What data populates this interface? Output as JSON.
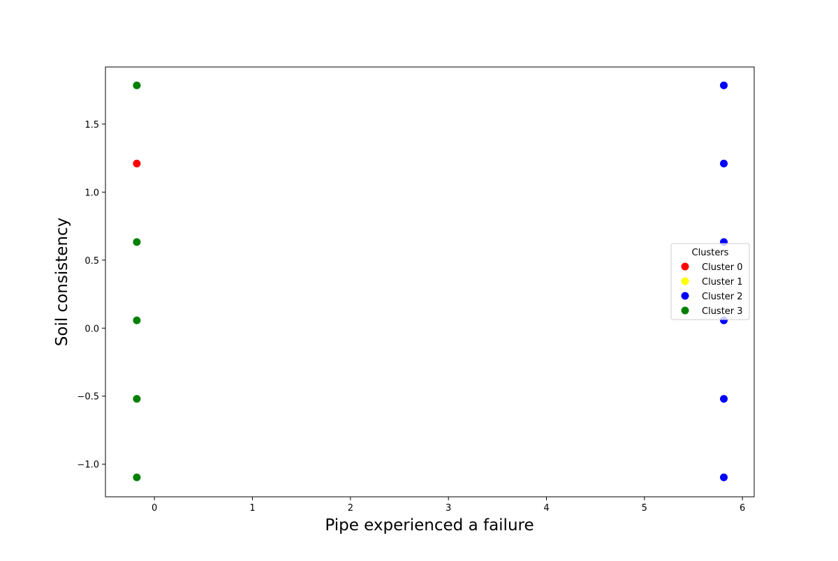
{
  "chart_data": {
    "type": "scatter",
    "title": "",
    "xlabel": "Pipe experienced a failure",
    "ylabel": "Soil consistency",
    "xlim": [
      -0.5,
      6.12
    ],
    "ylim": [
      -1.24,
      1.92
    ],
    "xticks": [
      0,
      1,
      2,
      3,
      4,
      5,
      6
    ],
    "yticks": [
      -1.0,
      -0.5,
      0.0,
      0.5,
      1.0,
      1.5
    ],
    "ytick_labels": [
      "−1.0",
      "−0.5",
      "0.0",
      "0.5",
      "1.0",
      "1.5"
    ],
    "grid": false,
    "legend": {
      "title": "Clusters",
      "placement": "center-right",
      "entries": [
        {
          "name": "Cluster 0",
          "color": "#ff0000"
        },
        {
          "name": "Cluster 1",
          "color": "#ffff00"
        },
        {
          "name": "Cluster 2",
          "color": "#0000ff"
        },
        {
          "name": "Cluster 3",
          "color": "#008000"
        }
      ]
    },
    "series": [
      {
        "name": "Cluster 0",
        "color": "#ff0000",
        "points": [
          {
            "x": -0.18,
            "y": 1.21
          }
        ]
      },
      {
        "name": "Cluster 1",
        "color": "#ffff00",
        "points": []
      },
      {
        "name": "Cluster 2",
        "color": "#0000ff",
        "points": [
          {
            "x": 5.81,
            "y": 1.785
          },
          {
            "x": 5.81,
            "y": 1.21
          },
          {
            "x": 5.81,
            "y": 0.633
          },
          {
            "x": 5.81,
            "y": 0.057
          },
          {
            "x": 5.81,
            "y": -0.52
          },
          {
            "x": 5.81,
            "y": -1.097
          }
        ]
      },
      {
        "name": "Cluster 3",
        "color": "#008000",
        "points": [
          {
            "x": -0.18,
            "y": 1.785
          },
          {
            "x": -0.18,
            "y": 0.633
          },
          {
            "x": -0.18,
            "y": 0.057
          },
          {
            "x": -0.18,
            "y": -0.52
          },
          {
            "x": -0.18,
            "y": -1.097
          }
        ]
      }
    ]
  }
}
